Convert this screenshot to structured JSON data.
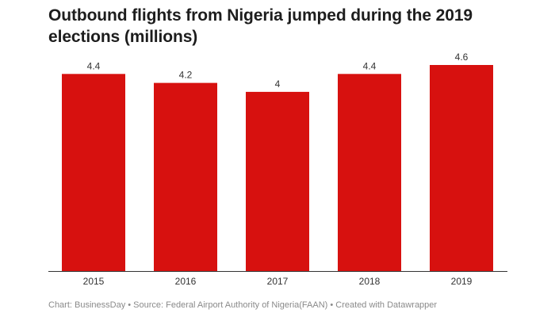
{
  "chart_data": {
    "type": "bar",
    "title": "Outbound flights from Nigeria jumped during the 2019 elections (millions)",
    "categories": [
      "2015",
      "2016",
      "2017",
      "2018",
      "2019"
    ],
    "values": [
      4.4,
      4.2,
      4,
      4.4,
      4.6
    ],
    "value_labels": [
      "4.4",
      "4.2",
      "4",
      "4.4",
      "4.6"
    ],
    "xlabel": "",
    "ylabel": "",
    "ylim": [
      0,
      4.6
    ],
    "grid": false,
    "bar_color": "#d7110f"
  },
  "footer": {
    "source": "Chart: BusinessDay • Source: Federal Airport Authority of Nigeria(FAAN) • Created with Datawrapper"
  }
}
